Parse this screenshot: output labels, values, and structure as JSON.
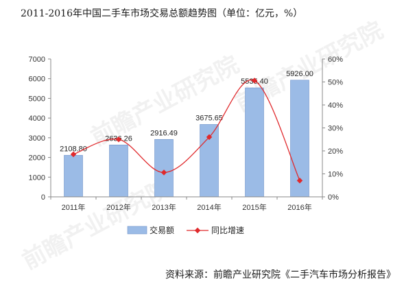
{
  "title": "2011-2016年中国二手车市场交易总额趋势图（单位：亿元，%）",
  "source": "资料来源：前瞻产业研究院《二手汽车市场分析报告》",
  "colors": {
    "bar": "#9bbbe6",
    "bar_border": "#6f93c8",
    "line": "#e0292c",
    "axis": "#888888",
    "grid": "#d9d9d9"
  },
  "chart_data": {
    "type": "bar",
    "categories": [
      "2011年",
      "2012年",
      "2013年",
      "2014年",
      "2015年",
      "2016年"
    ],
    "series": [
      {
        "name": "交易额",
        "type": "bar",
        "axis": "left",
        "values": [
          2108.8,
          2636.26,
          2916.49,
          3675.65,
          5535.4,
          5926.0
        ],
        "labels": [
          "2108.80",
          "2636.26",
          "2916.49",
          "3675.65",
          "5535.40",
          "5926.00"
        ]
      },
      {
        "name": "同比增速",
        "type": "line",
        "axis": "right",
        "values": [
          18.5,
          25.0,
          10.6,
          26.0,
          50.6,
          7.1
        ]
      }
    ],
    "y_left": {
      "min": 0,
      "max": 7000,
      "ticks": [
        "0",
        "1000",
        "2000",
        "3000",
        "4000",
        "5000",
        "6000",
        "7000"
      ]
    },
    "y_right": {
      "min": 0,
      "max": 60,
      "ticks": [
        "0%",
        "10%",
        "20%",
        "30%",
        "40%",
        "50%",
        "60%"
      ]
    },
    "legend_position": "bottom"
  }
}
